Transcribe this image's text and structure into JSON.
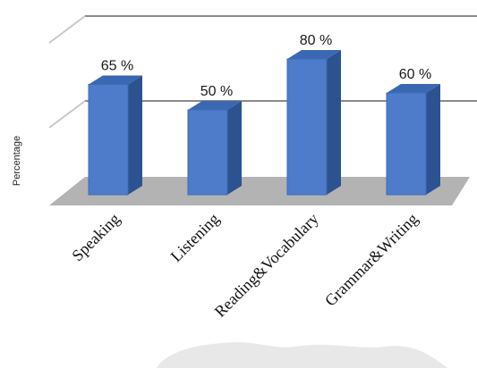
{
  "chart_data": {
    "type": "bar",
    "categories": [
      "Speaking",
      "Listening",
      "Reading&Vocabulary",
      "Grammar&Writing"
    ],
    "values": [
      65,
      50,
      80,
      60
    ],
    "value_labels": [
      "65 %",
      "50 %",
      "80 %",
      "60 %"
    ],
    "ylabel": "Percentage",
    "ylim": [
      0,
      100
    ],
    "grid": true,
    "legend": "none",
    "colors": {
      "bar_front": "#4e7ccb",
      "bar_side": "#2c5390",
      "bar_top": "#3a68b3",
      "floor": "#b3b3b3",
      "grid": "#8a8a8a"
    }
  }
}
